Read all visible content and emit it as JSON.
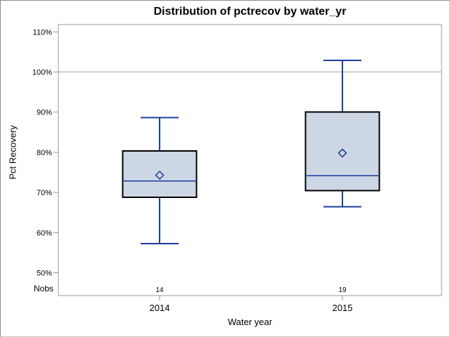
{
  "chart_data": {
    "type": "boxplot",
    "title": "Distribution of pctrecov by water_yr",
    "xlabel": "Water year",
    "ylabel": "Pct Recovery",
    "y_axis": {
      "min": 50,
      "max": 110,
      "step": 10,
      "ticks": [
        {
          "value": 110,
          "label": "110%"
        },
        {
          "value": 100,
          "label": "100%"
        },
        {
          "value": 90,
          "label": "90%"
        },
        {
          "value": 80,
          "label": "80%"
        },
        {
          "value": 70,
          "label": "70%"
        },
        {
          "value": 60,
          "label": "60%"
        },
        {
          "value": 50,
          "label": "50%"
        }
      ]
    },
    "reference_line_value": 100,
    "nobs_label": "Nobs",
    "categories": [
      "2014",
      "2015"
    ],
    "series": [
      {
        "label": "2014",
        "nobs": "14",
        "whisker_low": 57.3,
        "q1": 68.8,
        "median": 72.9,
        "q3": 80.3,
        "whisker_high": 88.6,
        "mean": 74.3
      },
      {
        "label": "2015",
        "nobs": "19",
        "whisker_low": 66.4,
        "q1": 70.5,
        "median": 74.2,
        "q3": 90.0,
        "whisker_high": 102.9,
        "mean": 79.8
      }
    ],
    "legend": null,
    "grid": "off",
    "colors": {
      "box_fill": "#CCD6E5",
      "box_border": "#000000",
      "line": "#1C3C99",
      "frame": "#999999",
      "reference_line": "#A3A3A3",
      "text": "#000000"
    }
  }
}
